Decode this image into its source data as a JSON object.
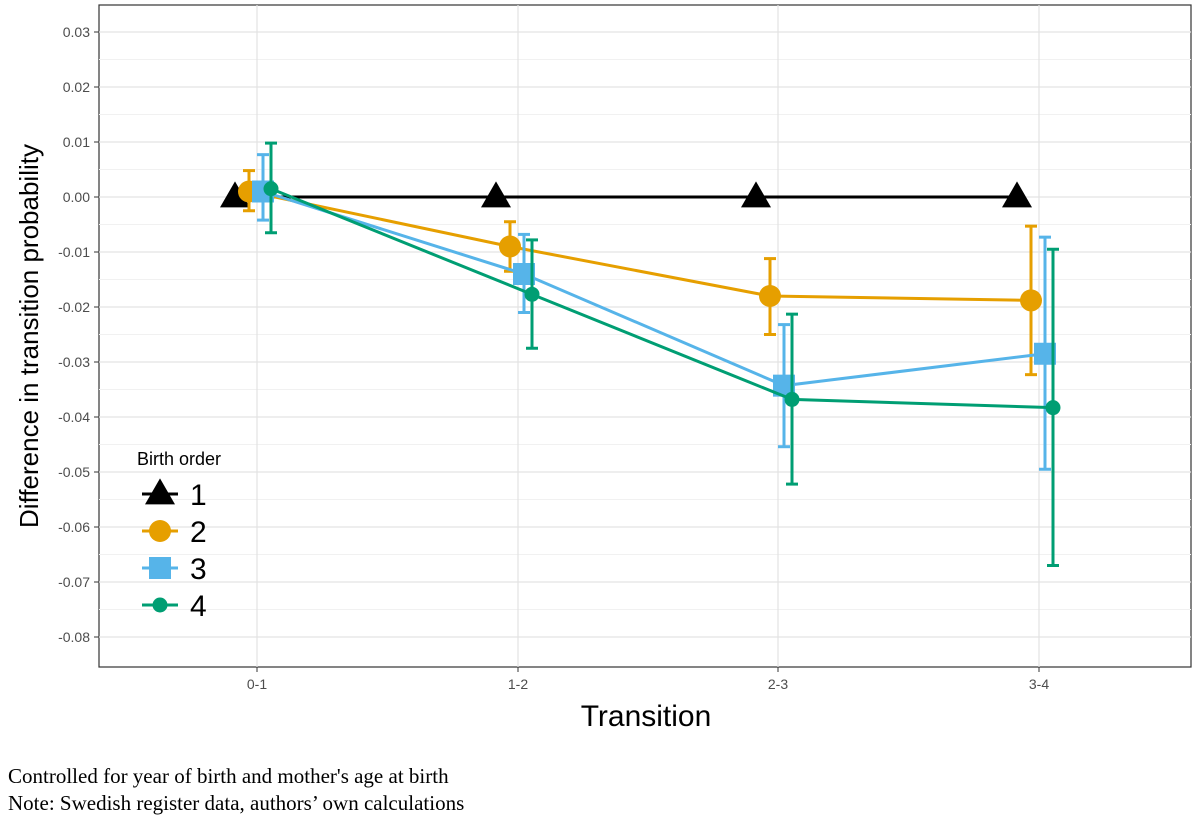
{
  "chart_data": {
    "type": "line",
    "xlabel": "Transition",
    "ylabel": "Difference in transition probability",
    "categories": [
      "0-1",
      "1-2",
      "2-3",
      "3-4"
    ],
    "yticks": [
      0.03,
      0.02,
      0.01,
      0.0,
      -0.01,
      -0.02,
      -0.03,
      -0.04,
      -0.05,
      -0.06,
      -0.07,
      -0.08
    ],
    "ytick_labels": [
      "0.03",
      "0.02",
      "0.01",
      "0.00",
      "-0.01",
      "-0.02",
      "-0.03",
      "-0.04",
      "-0.05",
      "-0.06",
      "-0.07",
      "-0.08"
    ],
    "ylim": [
      -0.085,
      0.035
    ],
    "grid": true,
    "legend": {
      "title": "Birth order",
      "position": "bottom-left"
    },
    "series": [
      {
        "name": "1",
        "color": "#000000",
        "marker": "triangle",
        "values": [
          0.0,
          0.0,
          0.0,
          0.0
        ],
        "lower": null,
        "upper": null
      },
      {
        "name": "2",
        "color": "#E69F00",
        "marker": "circle",
        "values": [
          0.001,
          -0.009,
          -0.018,
          -0.0188
        ],
        "lower": [
          -0.0025,
          -0.0135,
          -0.025,
          -0.0323
        ],
        "upper": [
          0.0048,
          -0.0045,
          -0.0112,
          -0.0053
        ]
      },
      {
        "name": "3",
        "color": "#56B4E9",
        "marker": "square",
        "values": [
          0.001,
          -0.014,
          -0.0343,
          -0.0285
        ],
        "lower": [
          -0.0042,
          -0.021,
          -0.0454,
          -0.0495
        ],
        "upper": [
          0.0077,
          -0.0068,
          -0.0232,
          -0.0073
        ]
      },
      {
        "name": "4",
        "color": "#009E73",
        "marker": "dot",
        "values": [
          0.0015,
          -0.0177,
          -0.0368,
          -0.0383
        ],
        "lower": [
          -0.0065,
          -0.0275,
          -0.0522,
          -0.067
        ],
        "upper": [
          0.0098,
          -0.0078,
          -0.0213,
          -0.0095
        ]
      }
    ]
  },
  "notes": {
    "line1": "Controlled for year of birth and mother's age at birth",
    "line2": "Note: Swedish register data, authors’ own calculations"
  }
}
